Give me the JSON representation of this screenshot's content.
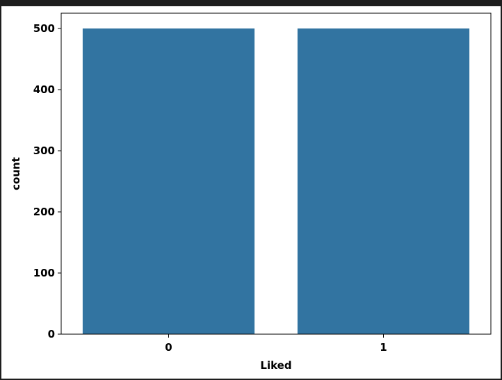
{
  "chart_data": {
    "type": "bar",
    "categories": [
      "0",
      "1"
    ],
    "values": [
      500,
      500
    ],
    "xlabel": "Liked",
    "ylabel": "count",
    "ylim": [
      0,
      525
    ],
    "yticks": [
      0,
      100,
      200,
      300,
      400,
      500
    ],
    "bar_color": "#3274a1",
    "grid": false,
    "legend": "none"
  }
}
